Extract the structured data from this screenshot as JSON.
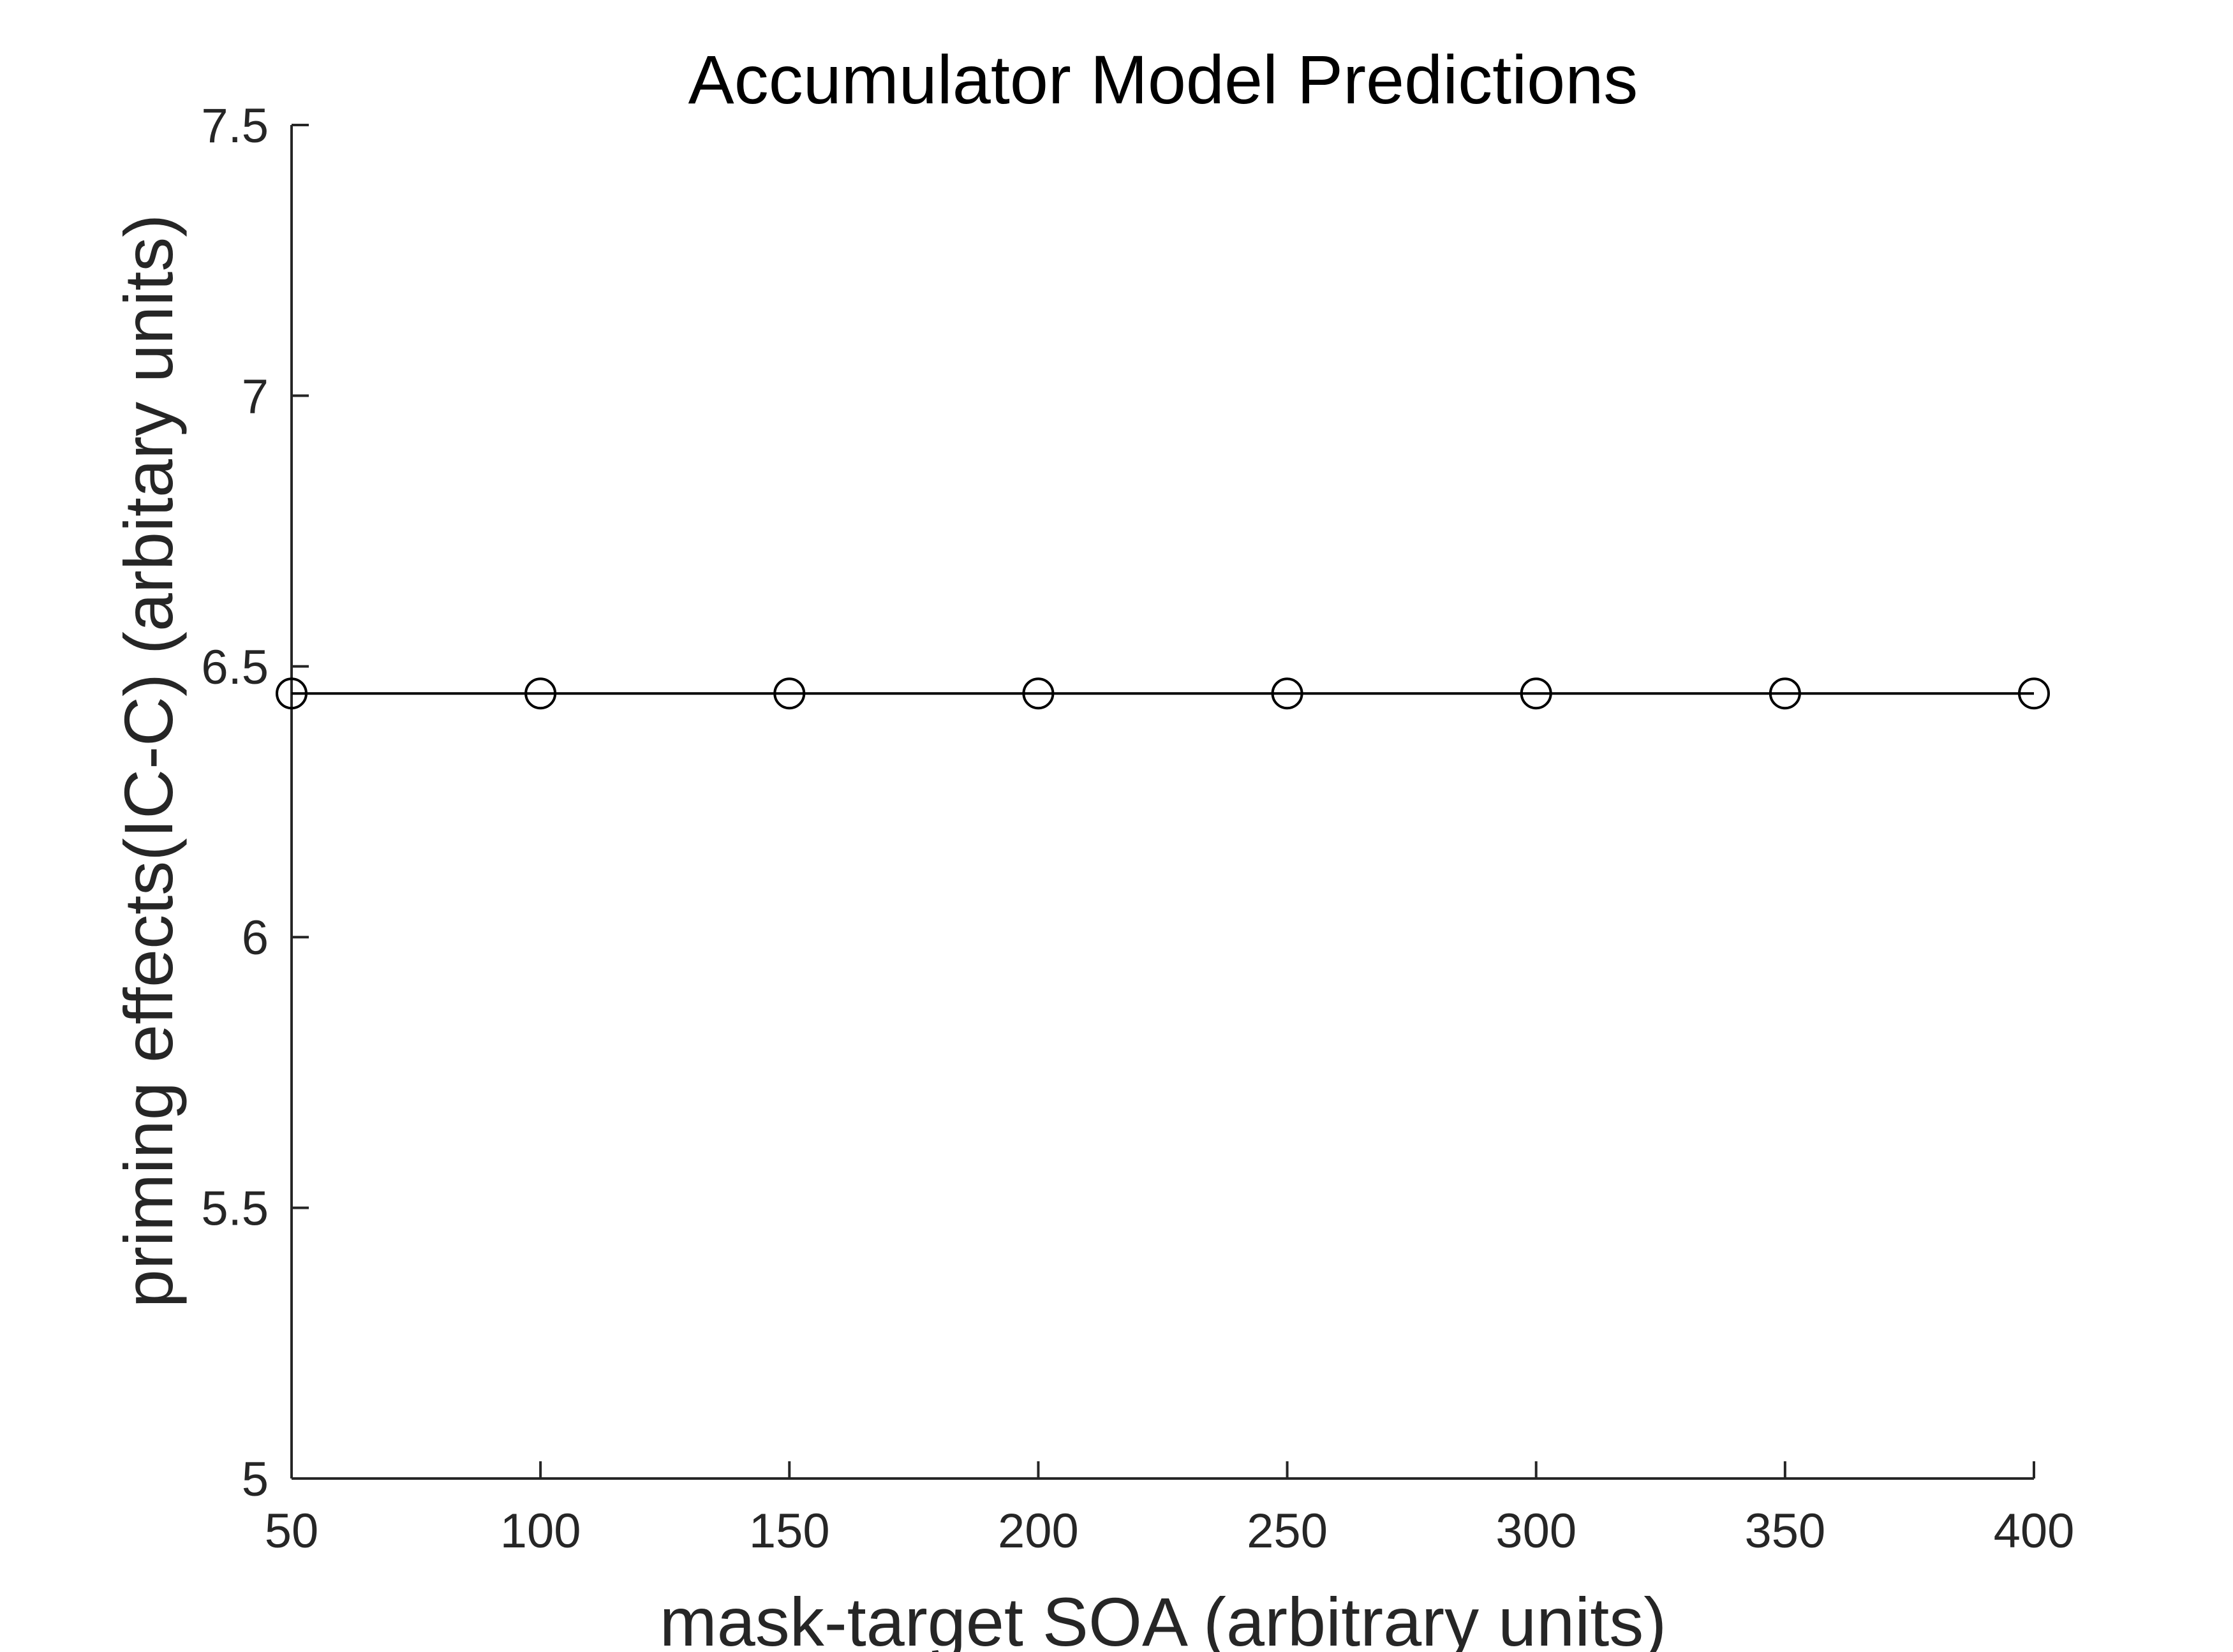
{
  "chart_data": {
    "type": "line",
    "title": "Accumulator Model Predictions",
    "xlabel": "mask-target SOA (arbitrary units)",
    "ylabel": "priming effects(IC-C) (arbitary units)",
    "xlim": [
      50,
      400
    ],
    "ylim": [
      5,
      7.5
    ],
    "xticks": [
      50,
      100,
      150,
      200,
      250,
      300,
      350,
      400
    ],
    "yticks": [
      5,
      5.5,
      6,
      6.5,
      7,
      7.5
    ],
    "xtick_labels": [
      "50",
      "100",
      "150",
      "200",
      "250",
      "300",
      "350",
      "400"
    ],
    "ytick_labels": [
      "5",
      "5.5",
      "6",
      "6.5",
      "7",
      "7.5"
    ],
    "grid": false,
    "series": [
      {
        "x": [
          50,
          100,
          150,
          200,
          250,
          300,
          350,
          400
        ],
        "values": [
          6.45,
          6.45,
          6.45,
          6.45,
          6.45,
          6.45,
          6.45,
          6.45
        ],
        "color": "#000000",
        "marker": "open-circle"
      }
    ]
  }
}
